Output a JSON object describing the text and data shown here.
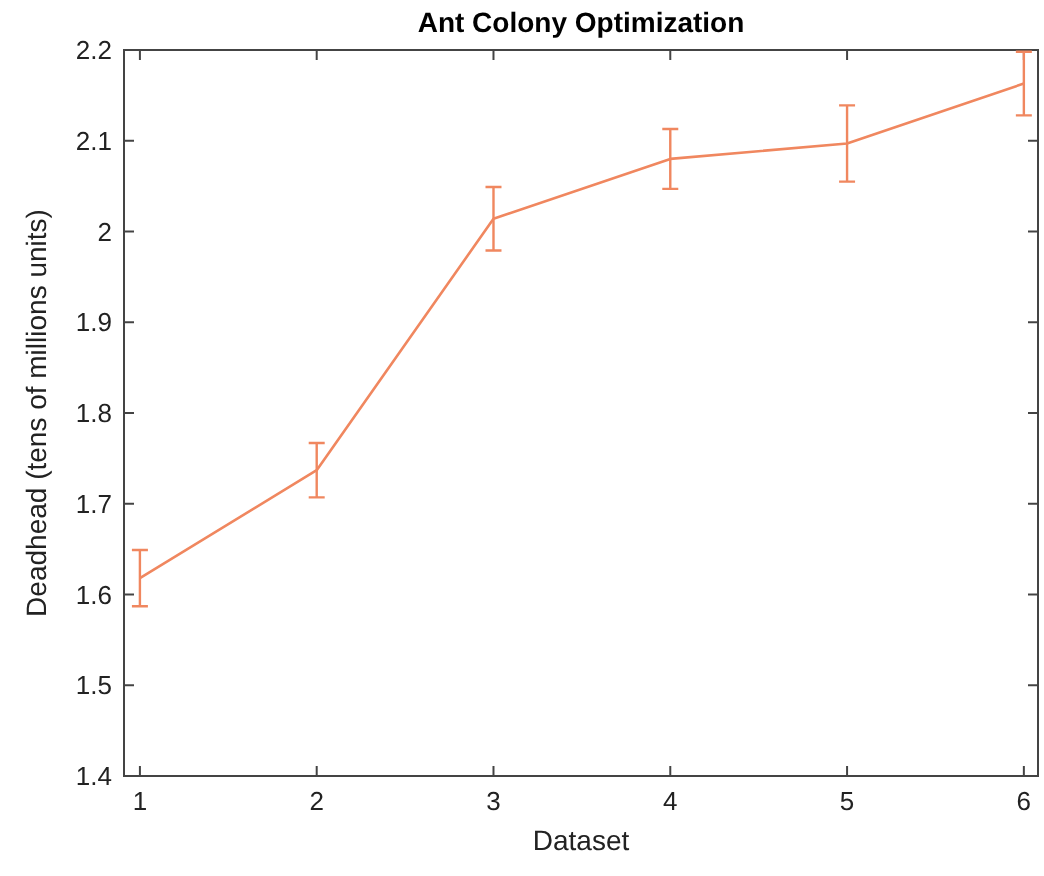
{
  "chart_data": {
    "type": "line",
    "title": "Ant Colony Optimization",
    "xlabel": "Dataset",
    "ylabel": "Deadhead (tens of millions units)",
    "x": [
      1,
      2,
      3,
      4,
      5,
      6
    ],
    "series": [
      {
        "color": "#f0875f",
        "values": [
          1.618,
          1.737,
          2.014,
          2.08,
          2.097,
          2.163
        ],
        "errors": [
          0.031,
          0.03,
          0.035,
          0.033,
          0.042,
          0.035
        ]
      }
    ],
    "xlim": [
      0.91,
      6.08
    ],
    "xticks": [
      1,
      2,
      3,
      4,
      5,
      6
    ],
    "ylim": [
      1.4,
      2.2
    ],
    "yticks": [
      1.4,
      1.5,
      1.6,
      1.7,
      1.8,
      1.9,
      2,
      2.1,
      2.2
    ],
    "grid": false,
    "marker": "none",
    "line_style": "solid"
  }
}
